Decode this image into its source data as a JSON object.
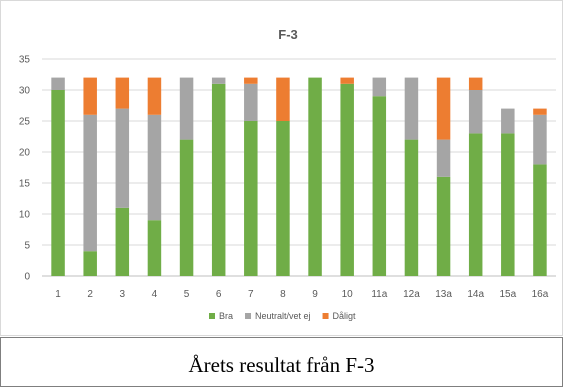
{
  "chart_data": {
    "type": "bar",
    "stacked": true,
    "title": "F-3",
    "xlabel": "",
    "ylabel": "",
    "categories": [
      "1",
      "2",
      "3",
      "4",
      "5",
      "6",
      "7",
      "8",
      "9",
      "10",
      "11a",
      "12a",
      "13a",
      "14a",
      "15a",
      "16a"
    ],
    "series": [
      {
        "name": "Bra",
        "color": "#70ad47",
        "values": [
          30,
          4,
          11,
          9,
          22,
          31,
          25,
          25,
          32,
          31,
          29,
          22,
          16,
          23,
          23,
          18
        ]
      },
      {
        "name": "Neutralt/vet ej",
        "color": "#a5a5a5",
        "values": [
          2,
          22,
          16,
          17,
          10,
          1,
          6,
          0,
          0,
          0,
          3,
          10,
          6,
          7,
          4,
          8
        ]
      },
      {
        "name": "Dåligt",
        "color": "#ed7d31",
        "values": [
          0,
          6,
          5,
          6,
          0,
          0,
          1,
          7,
          0,
          1,
          0,
          0,
          10,
          2,
          0,
          1
        ]
      }
    ],
    "ylim": [
      0,
      35
    ],
    "yticks": [
      0,
      5,
      10,
      15,
      20,
      25,
      30,
      35
    ],
    "grid": true,
    "legend_position": "bottom"
  },
  "caption": "Årets resultat från F-3"
}
